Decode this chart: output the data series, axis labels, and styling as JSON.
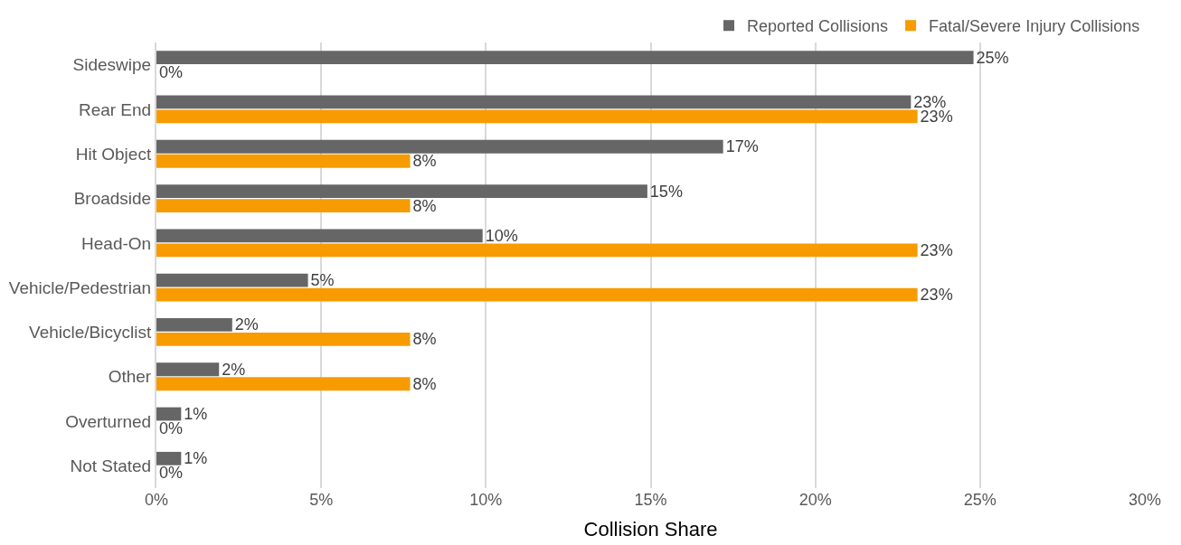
{
  "chart_data": {
    "type": "bar",
    "orientation": "horizontal",
    "xlabel": "Collision Share",
    "categories": [
      "Sideswipe",
      "Rear End",
      "Hit Object",
      "Broadside",
      "Head-On",
      "Vehicle/Pedestrian",
      "Vehicle/Bicyclist",
      "Other",
      "Overturned",
      "Not Stated"
    ],
    "series": [
      {
        "name": "Reported Collisions",
        "color": "#666666",
        "values": [
          24.8,
          22.9,
          17.2,
          14.9,
          9.9,
          4.6,
          2.3,
          1.9,
          0.75,
          0.75
        ],
        "value_labels": [
          "25%",
          "23%",
          "17%",
          "15%",
          "10%",
          "5%",
          "2%",
          "2%",
          "1%",
          "1%"
        ]
      },
      {
        "name": "Fatal/Severe Injury Collisions",
        "color": "#f79b00",
        "values": [
          0,
          23.1,
          7.7,
          7.7,
          23.1,
          23.1,
          7.7,
          7.7,
          0,
          0
        ],
        "value_labels": [
          "0%",
          "23%",
          "8%",
          "8%",
          "23%",
          "23%",
          "8%",
          "8%",
          "0%",
          "0%"
        ]
      }
    ],
    "xlim": [
      0,
      30
    ],
    "xticks": [
      {
        "value": 0,
        "label": "0%"
      },
      {
        "value": 5,
        "label": "5%"
      },
      {
        "value": 10,
        "label": "10%"
      },
      {
        "value": 15,
        "label": "15%"
      },
      {
        "value": 20,
        "label": "20%"
      },
      {
        "value": 25,
        "label": "25%"
      },
      {
        "value": 30,
        "label": "30%"
      }
    ],
    "grid": "x",
    "legend": "top right"
  }
}
